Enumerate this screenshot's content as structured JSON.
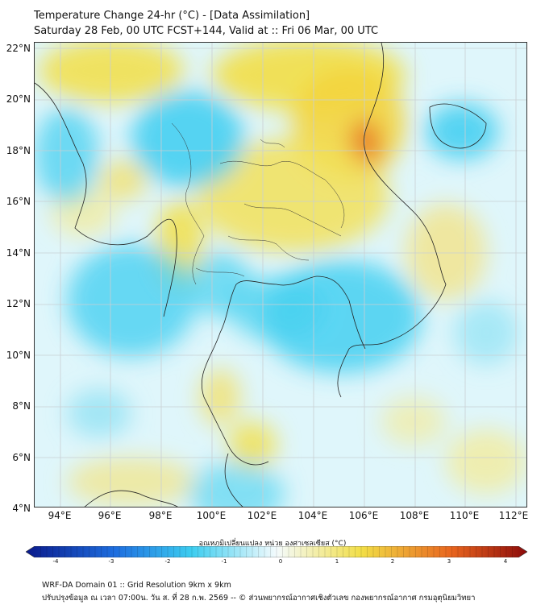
{
  "header": {
    "title": "Temperature Change 24-hr (°C) - [Data Assimilation]",
    "subtitle": "Saturday 28 Feb, 00 UTC FCST+144, Valid at :: Fri 06 Mar, 00 UTC"
  },
  "map": {
    "lat_labels": [
      "22°N",
      "20°N",
      "18°N",
      "16°N",
      "14°N",
      "12°N",
      "10°N",
      "8°N",
      "6°N",
      "4°N"
    ],
    "lon_labels": [
      "94°E",
      "96°E",
      "98°E",
      "100°E",
      "102°E",
      "104°E",
      "106°E",
      "108°E",
      "110°E",
      "112°E"
    ]
  },
  "colorbar": {
    "title": "อุณหภูมิเปลี่ยนแปลง หน่วย องศาเซลเซียส (°C)",
    "ticks": [
      "-4",
      "-3",
      "-2",
      "-1",
      "0",
      "1",
      "2",
      "3",
      "4"
    ],
    "min": -4,
    "max": 4,
    "colors": {
      "cold_extreme": "#0a1a8c",
      "cold": "#1e6fe0",
      "cool": "#3ccdf0",
      "neutral": "#f4fbfd",
      "warm": "#f2de46",
      "hot": "#e8641e",
      "hot_extreme": "#8c0a0a"
    }
  },
  "footer": {
    "line1": "WRF-DA Domain 01 :: Grid Resolution 9km x 9km",
    "line2": "ปรับปรุงข้อมูล ณ เวลา 07:00น. วัน ส. ที่ 28 ก.พ. 2569 -- © ส่วนพยากรณ์อากาศเชิงตัวเลข กองพยากรณ์อากาศ กรมอุตุนิยมวิทยา"
  }
}
